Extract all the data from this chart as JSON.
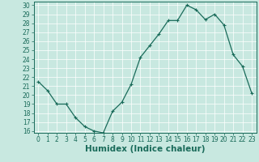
{
  "title": "",
  "xlabel": "Humidex (Indice chaleur)",
  "x": [
    0,
    1,
    2,
    3,
    4,
    5,
    6,
    7,
    8,
    9,
    10,
    11,
    12,
    13,
    14,
    15,
    16,
    17,
    18,
    19,
    20,
    21,
    22,
    23
  ],
  "y": [
    21.5,
    20.5,
    19.0,
    19.0,
    17.5,
    16.5,
    16.0,
    15.8,
    18.2,
    19.2,
    21.2,
    24.2,
    25.5,
    26.8,
    28.3,
    28.3,
    30.0,
    29.5,
    28.4,
    29.0,
    27.8,
    24.5,
    23.2,
    20.2
  ],
  "line_color": "#1a6b5a",
  "marker": "+",
  "marker_color": "#1a6b5a",
  "bg_color": "#c8e8e0",
  "grid_color": "#ffffff",
  "ylim": [
    15.8,
    30.4
  ],
  "xlim": [
    -0.5,
    23.5
  ],
  "yticks": [
    16,
    17,
    18,
    19,
    20,
    21,
    22,
    23,
    24,
    25,
    26,
    27,
    28,
    29,
    30
  ],
  "xticks": [
    0,
    1,
    2,
    3,
    4,
    5,
    6,
    7,
    8,
    9,
    10,
    11,
    12,
    13,
    14,
    15,
    16,
    17,
    18,
    19,
    20,
    21,
    22,
    23
  ],
  "tick_fontsize": 5.5,
  "xlabel_fontsize": 7.5,
  "axis_color": "#1a6b5a",
  "tick_color": "#1a6b5a",
  "linewidth": 0.9,
  "markersize": 3.5,
  "markeredgewidth": 0.8
}
